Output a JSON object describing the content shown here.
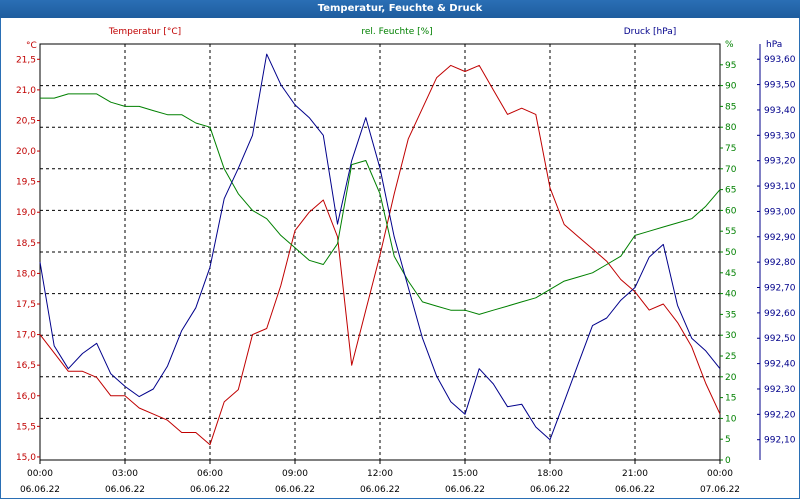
{
  "window": {
    "title": "Temperatur, Feuchte & Druck"
  },
  "colors": {
    "temperature": "#c00000",
    "humidity": "#008000",
    "pressure": "#00008b",
    "grid": "#000000",
    "titlebar": "#1e5d9e"
  },
  "chart_data": {
    "type": "line",
    "title": "Temperatur, Feuchte & Druck",
    "grid": true,
    "x_tick_labels": [
      {
        "time": "00:00",
        "date": "06.06.22"
      },
      {
        "time": "03:00",
        "date": "06.06.22"
      },
      {
        "time": "06:00",
        "date": "06.06.22"
      },
      {
        "time": "09:00",
        "date": "06.06.22"
      },
      {
        "time": "12:00",
        "date": "06.06.22"
      },
      {
        "time": "15:00",
        "date": "06.06.22"
      },
      {
        "time": "18:00",
        "date": "06.06.22"
      },
      {
        "time": "21:00",
        "date": "06.06.22"
      },
      {
        "time": "00:00",
        "date": "07.06.22"
      }
    ],
    "x_range_hours": [
      0,
      24
    ],
    "axes": {
      "temperature": {
        "unit": "°C",
        "range": [
          14.95,
          21.75
        ],
        "ticks": [
          "15,0",
          "15,5",
          "16,0",
          "16,5",
          "17,0",
          "17,5",
          "18,0",
          "18,5",
          "19,0",
          "19,5",
          "20,0",
          "20,5",
          "21,0",
          "21,5"
        ]
      },
      "humidity": {
        "unit": "%",
        "range": [
          0,
          100
        ],
        "ticks": [
          "0",
          "5",
          "10",
          "15",
          "20",
          "25",
          "30",
          "35",
          "40",
          "45",
          "50",
          "55",
          "60",
          "65",
          "70",
          "75",
          "80",
          "85",
          "90",
          "95",
          "%"
        ]
      },
      "pressure": {
        "unit": "hPa",
        "range": [
          992.02,
          993.66
        ],
        "ticks": [
          "992,10",
          "992,20",
          "992,30",
          "992,40",
          "992,50",
          "992,60",
          "992,70",
          "992,80",
          "992,90",
          "993,00",
          "993,10",
          "993,20",
          "993,30",
          "993,40",
          "993,50",
          "993,60",
          "hPa"
        ]
      }
    },
    "series": [
      {
        "name": "Temperatur [°C]",
        "axis": "temperature",
        "x": [
          0,
          0.5,
          1,
          1.5,
          2,
          2.5,
          3,
          3.5,
          4,
          4.5,
          5,
          5.5,
          6,
          6.5,
          7,
          7.5,
          8,
          8.5,
          9,
          9.5,
          10,
          10.5,
          11,
          11.5,
          12,
          12.5,
          13,
          13.5,
          14,
          14.5,
          15,
          15.5,
          16,
          16.5,
          17,
          17.5,
          18,
          18.5,
          19,
          19.5,
          20,
          20.5,
          21,
          21.5,
          22,
          22.5,
          23,
          23.5,
          24
        ],
        "values": [
          17.0,
          16.7,
          16.4,
          16.4,
          16.3,
          16.0,
          16.0,
          15.8,
          15.7,
          15.6,
          15.4,
          15.4,
          15.2,
          15.9,
          16.1,
          17.0,
          17.1,
          17.8,
          18.7,
          19.0,
          19.2,
          18.6,
          16.5,
          17.4,
          18.3,
          19.3,
          20.2,
          20.7,
          21.2,
          21.4,
          21.3,
          21.4,
          21.0,
          20.6,
          20.7,
          20.6,
          19.4,
          18.8,
          18.6,
          18.4,
          18.2,
          17.9,
          17.7,
          17.4,
          17.5,
          17.2,
          16.8,
          16.2,
          15.7
        ]
      },
      {
        "name": "rel. Feuchte [%]",
        "axis": "humidity",
        "x": [
          0,
          0.5,
          1,
          1.5,
          2,
          2.5,
          3,
          3.5,
          4,
          4.5,
          5,
          5.5,
          6,
          6.5,
          7,
          7.5,
          8,
          8.5,
          9,
          9.5,
          10,
          10.5,
          11,
          11.5,
          12,
          12.5,
          13,
          13.5,
          14,
          14.5,
          15,
          15.5,
          16,
          16.5,
          17,
          17.5,
          18,
          18.5,
          19,
          19.5,
          20,
          20.5,
          21,
          21.5,
          22,
          22.5,
          23,
          23.5,
          24
        ],
        "values": [
          87,
          87,
          88,
          88,
          88,
          86,
          85,
          85,
          84,
          83,
          83,
          81,
          80,
          70,
          64,
          60,
          58,
          54,
          51,
          48,
          47,
          52,
          71,
          72,
          64,
          49,
          43,
          38,
          37,
          36,
          36,
          35,
          36,
          37,
          38,
          39,
          41,
          43,
          44,
          45,
          47,
          49,
          54,
          55,
          56,
          57,
          58,
          61,
          65
        ]
      },
      {
        "name": "Druck [hPa]",
        "axis": "pressure",
        "x": [
          0,
          0.5,
          1,
          1.5,
          2,
          2.5,
          3,
          3.5,
          4,
          4.5,
          5,
          5.5,
          6,
          6.5,
          7,
          7.5,
          8,
          8.5,
          9,
          9.5,
          10,
          10.5,
          11,
          11.5,
          12,
          12.5,
          13,
          13.5,
          14,
          14.5,
          15,
          15.5,
          16,
          16.5,
          17,
          17.5,
          18,
          18.5,
          19,
          19.5,
          20,
          20.5,
          21,
          21.5,
          22,
          22.5,
          23,
          23.5,
          24
        ],
        "values": [
          992.8,
          992.47,
          992.38,
          992.44,
          992.48,
          992.36,
          992.31,
          992.27,
          992.3,
          992.39,
          992.53,
          992.62,
          992.78,
          993.05,
          993.17,
          993.3,
          993.62,
          993.5,
          993.42,
          993.37,
          993.3,
          992.95,
          993.2,
          993.37,
          993.17,
          992.9,
          992.7,
          992.5,
          992.35,
          992.25,
          992.2,
          992.38,
          992.32,
          992.23,
          992.24,
          992.15,
          992.1,
          992.25,
          992.4,
          992.55,
          992.58,
          992.65,
          992.7,
          992.82,
          992.87,
          992.63,
          992.5,
          992.45,
          992.38
        ]
      }
    ]
  }
}
